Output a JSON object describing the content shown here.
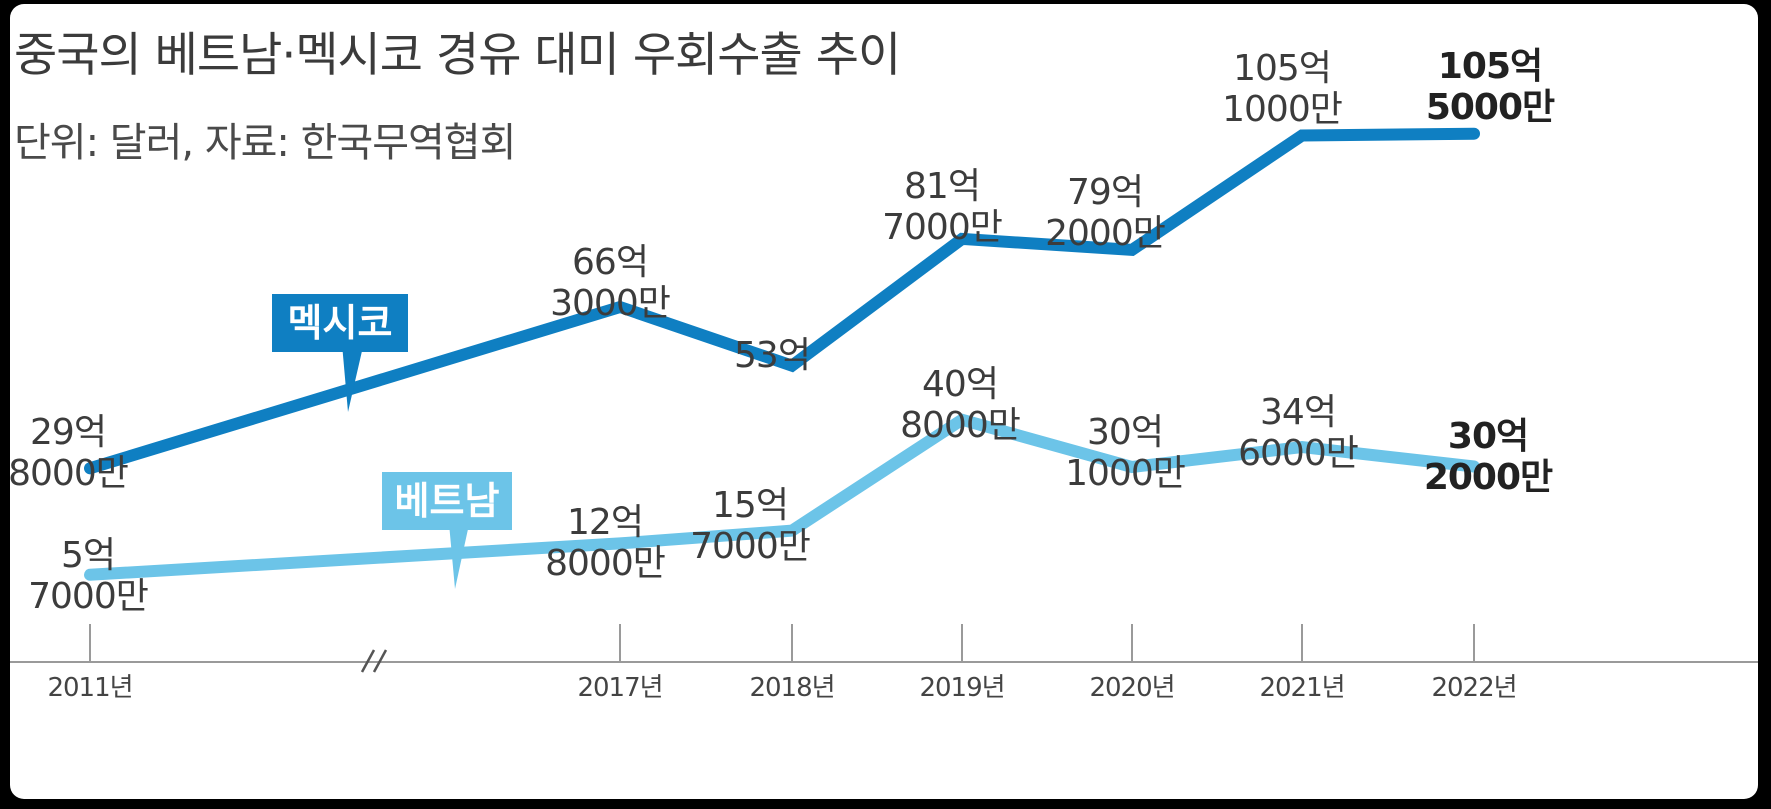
{
  "title": "중국의 베트남·멕시코 경유 대미 우회수출 추이",
  "subtitle": "단위: 달러, 자료: 한국무역협회",
  "colors": {
    "mexico": "#0f7fc2",
    "vietnam": "#6cc4e8",
    "axis": "#9a9a9a"
  },
  "chart_data": {
    "type": "line",
    "title": "중국의 베트남·멕시코 경유 대미 우회수출 추이",
    "categories": [
      "2011년",
      "2017년",
      "2018년",
      "2019년",
      "2020년",
      "2021년",
      "2022년"
    ],
    "axis_break": "//",
    "series": [
      {
        "name": "멕시코",
        "values": [
          2980000000,
          6630000000,
          5300000000,
          8170000000,
          7920000000,
          10510000000,
          10550000000
        ],
        "labels": [
          [
            "29억",
            "8000만"
          ],
          [
            "66억",
            "3000만"
          ],
          [
            "53억"
          ],
          [
            "81억",
            "7000만"
          ],
          [
            "79억",
            "2000만"
          ],
          [
            "105억",
            "1000만"
          ],
          [
            "105억",
            "5000만"
          ]
        ]
      },
      {
        "name": "베트남",
        "values": [
          570000000,
          1280000000,
          1570000000,
          4080000000,
          3010000000,
          3460000000,
          3020000000
        ],
        "labels": [
          [
            "5억",
            "7000만"
          ],
          [
            "12억",
            "8000만"
          ],
          [
            "15억",
            "7000만"
          ],
          [
            "40억",
            "8000만"
          ],
          [
            "30억",
            "1000만"
          ],
          [
            "34억",
            "6000만"
          ],
          [
            "30억",
            "2000만"
          ]
        ]
      }
    ],
    "ylim": [
      0,
      11000000000
    ],
    "grid": false,
    "legend": "inline tags"
  }
}
